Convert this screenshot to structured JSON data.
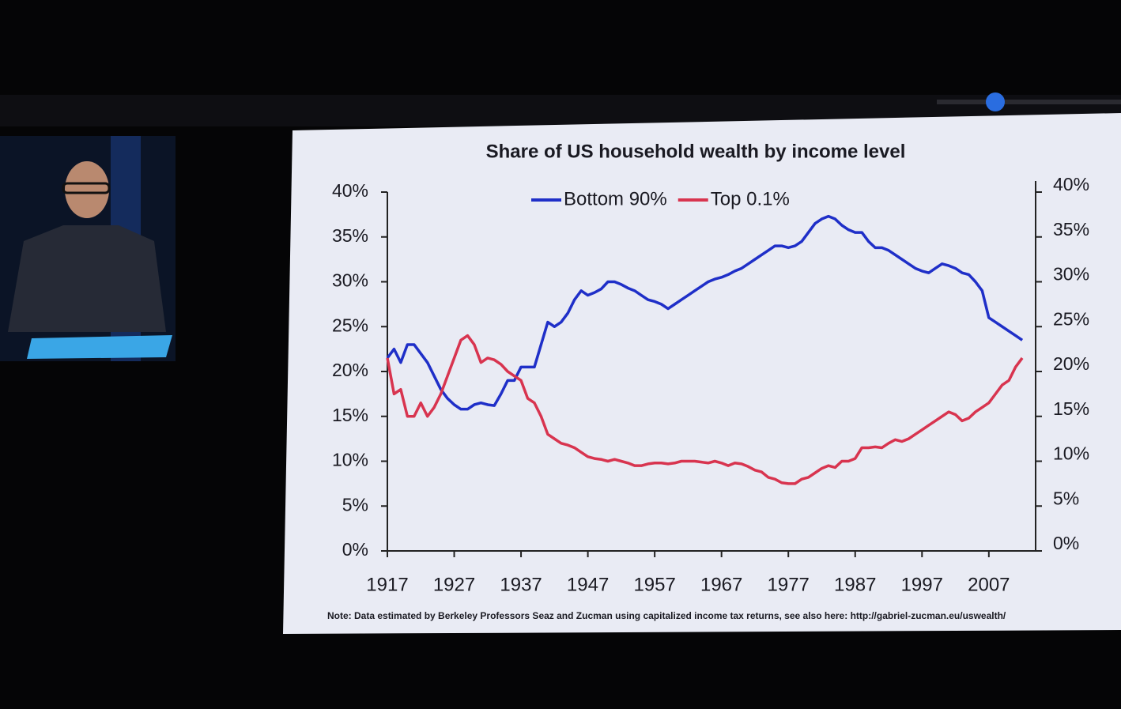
{
  "chart_data": {
    "type": "line",
    "title": "Share of US household wealth by income level",
    "note": "Note: Data estimated by Berkeley Professors Seaz and Zucman using capitalized income tax returns, see also here: http://gabriel-zucman.eu/uswealth/",
    "x": [
      1917,
      1918,
      1919,
      1920,
      1921,
      1922,
      1923,
      1924,
      1925,
      1926,
      1927,
      1928,
      1929,
      1930,
      1931,
      1932,
      1933,
      1934,
      1935,
      1936,
      1937,
      1938,
      1939,
      1940,
      1941,
      1942,
      1943,
      1944,
      1945,
      1946,
      1947,
      1948,
      1949,
      1950,
      1951,
      1952,
      1953,
      1954,
      1955,
      1956,
      1957,
      1958,
      1959,
      1960,
      1961,
      1962,
      1963,
      1964,
      1965,
      1966,
      1967,
      1968,
      1969,
      1970,
      1971,
      1972,
      1973,
      1974,
      1975,
      1976,
      1977,
      1978,
      1979,
      1980,
      1981,
      1982,
      1983,
      1984,
      1985,
      1986,
      1987,
      1988,
      1989,
      1990,
      1991,
      1992,
      1993,
      1994,
      1995,
      1996,
      1997,
      1998,
      1999,
      2000,
      2001,
      2002,
      2003,
      2004,
      2005,
      2006,
      2007,
      2008,
      2009,
      2010,
      2011,
      2012
    ],
    "series": [
      {
        "name": "Bottom 90%",
        "color": "#1f2fc8",
        "values": [
          21.5,
          22.5,
          21,
          23,
          23,
          22,
          21,
          19.5,
          18,
          17,
          16.3,
          15.8,
          15.8,
          16.3,
          16.5,
          16.3,
          16.2,
          17.5,
          19,
          19,
          20.5,
          20.5,
          20.5,
          23,
          25.5,
          25,
          25.5,
          26.5,
          28,
          29,
          28.5,
          28.8,
          29.2,
          30,
          30,
          29.7,
          29.3,
          29,
          28.5,
          28,
          27.8,
          27.5,
          27,
          27.5,
          28,
          28.5,
          29,
          29.5,
          30,
          30.3,
          30.5,
          30.8,
          31.2,
          31.5,
          32,
          32.5,
          33,
          33.5,
          34,
          34,
          33.8,
          34,
          34.5,
          35.5,
          36.5,
          37,
          37.3,
          37,
          36.3,
          35.8,
          35.5,
          35.5,
          34.5,
          33.8,
          33.8,
          33.5,
          33,
          32.5,
          32,
          31.5,
          31.2,
          31,
          31.5,
          32,
          31.8,
          31.5,
          31,
          30.8,
          30,
          29,
          26,
          25.5,
          25,
          24.5,
          24,
          23.5
        ]
      },
      {
        "name": "Top 0.1%",
        "color": "#d8344f",
        "values": [
          21.5,
          17.5,
          18,
          15,
          15,
          16.5,
          15,
          16,
          17.5,
          19.5,
          21.5,
          23.5,
          24,
          23,
          21,
          21.5,
          21.3,
          20.8,
          20,
          19.5,
          19,
          17,
          16.5,
          15,
          13,
          12.5,
          12,
          11.8,
          11.5,
          11,
          10.5,
          10.3,
          10.2,
          10,
          10.2,
          10,
          9.8,
          9.5,
          9.5,
          9.7,
          9.8,
          9.8,
          9.7,
          9.8,
          10,
          10,
          10,
          9.9,
          9.8,
          10,
          9.8,
          9.5,
          9.8,
          9.7,
          9.4,
          9,
          8.8,
          8.2,
          8,
          7.6,
          7.5,
          7.5,
          8,
          8.2,
          8.7,
          9.2,
          9.5,
          9.3,
          10,
          10,
          10.3,
          11.5,
          11.5,
          11.6,
          11.5,
          12,
          12.4,
          12.2,
          12.5,
          13,
          13.5,
          14,
          14.5,
          15,
          15.5,
          15.2,
          14.5,
          14.8,
          15.5,
          16,
          16.5,
          17.5,
          18.5,
          19,
          20.5,
          21.5
        ]
      }
    ],
    "xlim": [
      1917,
      2014
    ],
    "xticks": [
      1917,
      1927,
      1937,
      1947,
      1957,
      1967,
      1977,
      1987,
      1997,
      2007
    ],
    "ylim": [
      0,
      40
    ],
    "yticks": [
      {
        "value": 0,
        "label": "0%"
      },
      {
        "value": 5,
        "label": "5%"
      },
      {
        "value": 10,
        "label": "10%"
      },
      {
        "value": 15,
        "label": "15%"
      },
      {
        "value": 20,
        "label": "20%"
      },
      {
        "value": 25,
        "label": "25%"
      },
      {
        "value": 30,
        "label": "30%"
      },
      {
        "value": 35,
        "label": "35%"
      },
      {
        "value": 40,
        "label": "40%"
      }
    ],
    "y2lim": [
      0,
      40
    ],
    "y2ticks": [
      {
        "value": 0,
        "label": "0%"
      },
      {
        "value": 5,
        "label": "5%"
      },
      {
        "value": 10,
        "label": "10%"
      },
      {
        "value": 15,
        "label": "15%"
      },
      {
        "value": 20,
        "label": "20%"
      },
      {
        "value": 25,
        "label": "25%"
      },
      {
        "value": 30,
        "label": "30%"
      },
      {
        "value": 35,
        "label": "35%"
      },
      {
        "value": 40,
        "label": "40%"
      }
    ],
    "legend": "top",
    "grid": false
  }
}
